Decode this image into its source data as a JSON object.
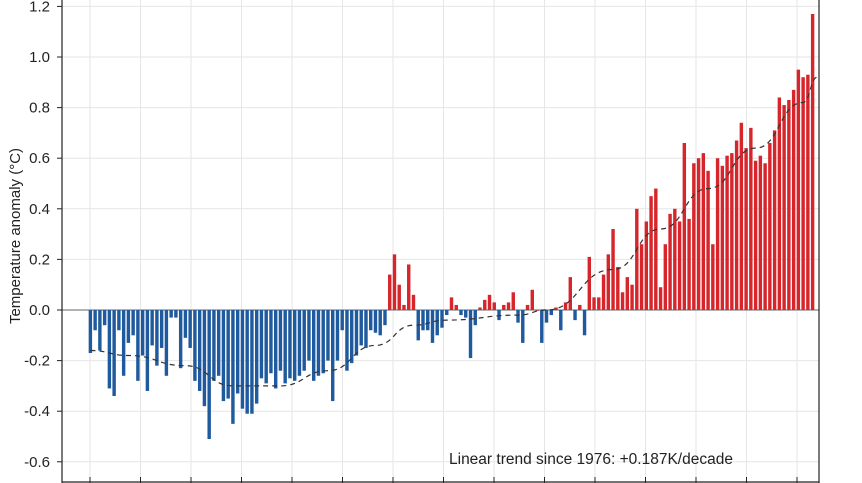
{
  "chart_data": {
    "type": "bar",
    "title": "",
    "xlabel": "",
    "ylabel": "Temperature anomaly (°C)",
    "ylim": [
      -0.68,
      1.22
    ],
    "yticks": [
      -0.6,
      -0.4,
      -0.2,
      0.0,
      0.2,
      0.4,
      0.6,
      0.8,
      1.0,
      1.2
    ],
    "ytick_labels": [
      "-0.6",
      "-0.4",
      "-0.2",
      "0.0",
      "0.2",
      "0.4",
      "0.6",
      "0.8",
      "1.0",
      "1.2"
    ],
    "grid": true,
    "annotation": "Linear trend since 1976: +0.187K/decade",
    "colors": {
      "positive": "#d6262c",
      "negative": "#1f5a9e",
      "trend": "#333333",
      "zero_line": "#999999",
      "grid": "#e6e6e6",
      "frame": "#222222"
    },
    "values": [
      -0.17,
      -0.08,
      -0.16,
      -0.06,
      -0.31,
      -0.34,
      -0.08,
      -0.26,
      -0.13,
      -0.1,
      -0.28,
      -0.18,
      -0.32,
      -0.14,
      -0.22,
      -0.15,
      -0.26,
      -0.03,
      -0.03,
      -0.23,
      -0.11,
      -0.15,
      -0.28,
      -0.32,
      -0.38,
      -0.51,
      -0.28,
      -0.26,
      -0.36,
      -0.35,
      -0.45,
      -0.33,
      -0.39,
      -0.41,
      -0.41,
      -0.37,
      -0.27,
      -0.29,
      -0.25,
      -0.31,
      -0.24,
      -0.29,
      -0.27,
      -0.28,
      -0.26,
      -0.24,
      -0.2,
      -0.28,
      -0.26,
      -0.25,
      -0.2,
      -0.36,
      -0.2,
      -0.08,
      -0.24,
      -0.21,
      -0.18,
      -0.14,
      -0.15,
      -0.08,
      -0.09,
      -0.1,
      -0.06,
      0.14,
      0.22,
      0.1,
      0.02,
      0.18,
      0.06,
      -0.12,
      -0.08,
      -0.08,
      -0.13,
      -0.1,
      -0.07,
      -0.02,
      0.05,
      0.02,
      -0.02,
      -0.03,
      -0.19,
      -0.06,
      0.01,
      0.04,
      0.06,
      0.03,
      -0.04,
      0.02,
      0.03,
      0.07,
      -0.05,
      -0.13,
      0.02,
      0.08,
      0.0,
      -0.13,
      -0.05,
      -0.02,
      0.01,
      -0.08,
      0.03,
      0.13,
      -0.04,
      0.02,
      -0.1,
      0.21,
      0.05,
      0.05,
      0.14,
      0.22,
      0.32,
      0.17,
      0.07,
      0.13,
      0.1,
      0.4,
      0.26,
      0.35,
      0.45,
      0.48,
      0.09,
      0.26,
      0.38,
      0.4,
      0.35,
      0.66,
      0.36,
      0.58,
      0.6,
      0.62,
      0.55,
      0.26,
      0.6,
      0.57,
      0.61,
      0.62,
      0.67,
      0.74,
      0.64,
      0.72,
      0.59,
      0.61,
      0.58,
      0.66,
      0.71,
      0.84,
      0.81,
      0.83,
      0.87,
      0.95,
      0.92,
      0.93,
      1.17
    ],
    "trend_line": [
      [
        0,
        -0.16
      ],
      [
        8,
        -0.18
      ],
      [
        20,
        -0.22
      ],
      [
        30,
        -0.3
      ],
      [
        40,
        -0.3
      ],
      [
        50,
        -0.24
      ],
      [
        60,
        -0.14
      ],
      [
        68,
        -0.06
      ],
      [
        75,
        -0.04
      ],
      [
        90,
        -0.02
      ],
      [
        96,
        0.0
      ],
      [
        110,
        0.16
      ],
      [
        120,
        0.32
      ],
      [
        130,
        0.48
      ],
      [
        140,
        0.64
      ],
      [
        150,
        0.82
      ],
      [
        153,
        0.92
      ]
    ]
  }
}
